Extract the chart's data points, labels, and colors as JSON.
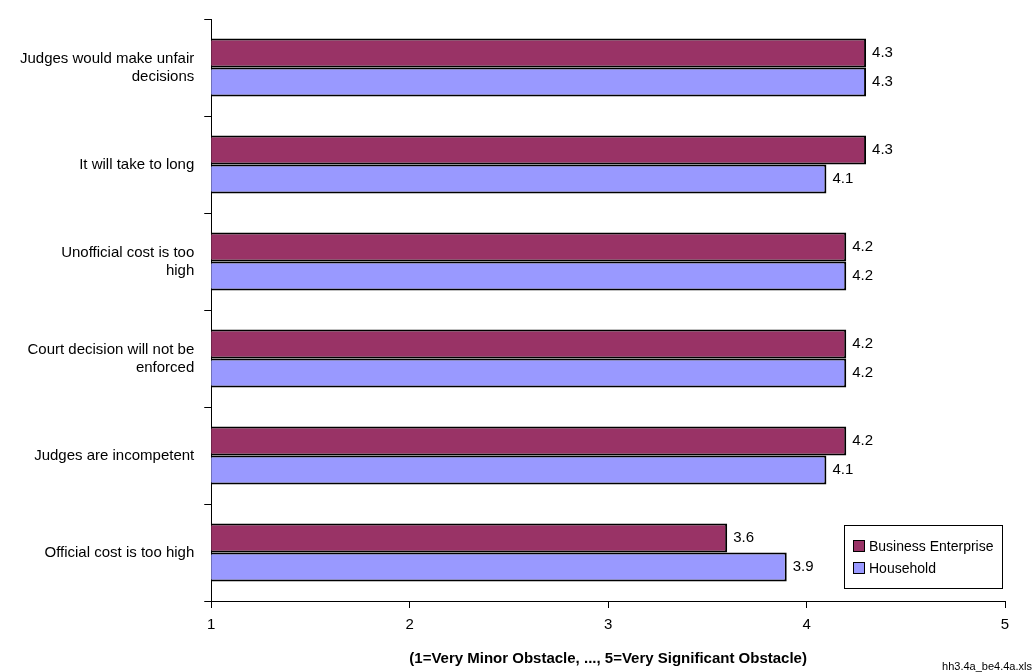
{
  "chart_data": {
    "type": "bar",
    "orientation": "horizontal",
    "xlabel": "(1=Very Minor Obstacle, ..., 5=Very Significant Obstacle)",
    "categories": [
      "Judges would make unfair decisions",
      "It will take to long",
      "Unofficial cost is too high",
      "Court decision will not be enforced",
      "Judges are incompetent",
      "Official cost is too high"
    ],
    "series": [
      {
        "name": "Business Enterprise",
        "color": "#993366",
        "values": [
          4.3,
          4.3,
          4.2,
          4.2,
          4.2,
          3.6
        ]
      },
      {
        "name": "Household",
        "color": "#9999ff",
        "values": [
          4.3,
          4.1,
          4.2,
          4.2,
          4.1,
          3.9
        ]
      }
    ],
    "xlim": [
      1,
      5
    ],
    "xticks": [
      1,
      2,
      3,
      4,
      5
    ],
    "data_labels": true,
    "legend": "bottom right",
    "annotations": [
      "hh3.4a_be4.4a.xls"
    ]
  }
}
